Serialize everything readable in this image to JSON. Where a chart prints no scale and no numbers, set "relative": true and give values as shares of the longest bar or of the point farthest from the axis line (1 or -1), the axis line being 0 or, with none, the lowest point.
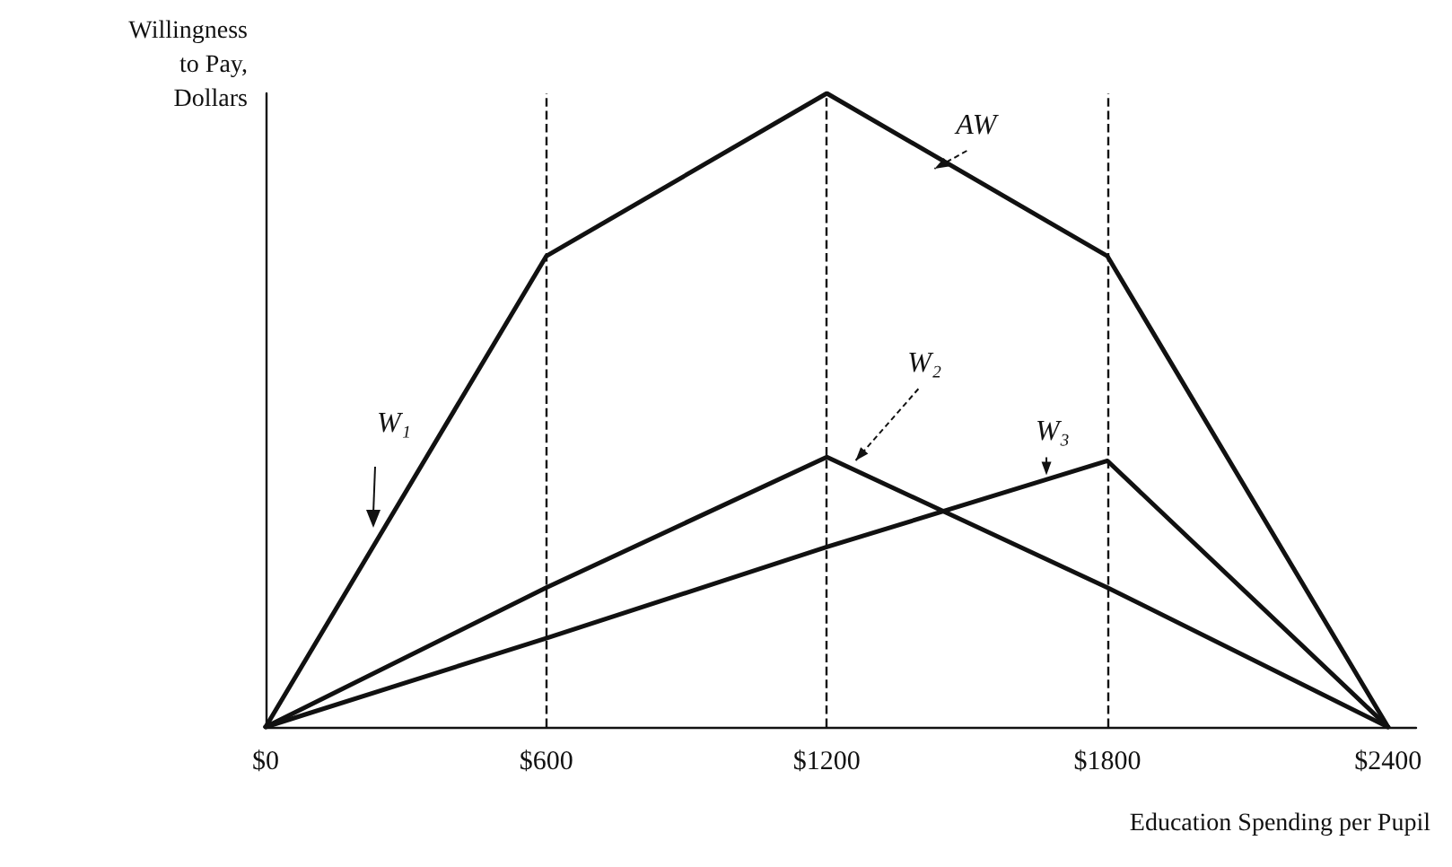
{
  "chart_data": {
    "type": "line",
    "ylabel": "Willingness\nto Pay,\nDollars",
    "xlabel": "Education Spending per Pupil",
    "relative": true,
    "xlim": [
      0,
      2460
    ],
    "xticks": [
      {
        "value": 0,
        "label": "$0"
      },
      {
        "value": 600,
        "label": "$600"
      },
      {
        "value": 1200,
        "label": "$1200"
      },
      {
        "value": 1800,
        "label": "$1800"
      },
      {
        "value": 2400,
        "label": "$2400"
      }
    ],
    "x": [
      0,
      600,
      1200,
      1800,
      2400
    ],
    "series": [
      {
        "name": "AW",
        "color": "#111111",
        "values": [
          0,
          0.743,
          1,
          0.743,
          0
        ]
      },
      {
        "name": "W₂",
        "color": "#111111",
        "values": [
          0,
          0.22,
          0.426,
          0.22,
          0
        ]
      },
      {
        "name": "W₃",
        "color": "#111111",
        "values": [
          0,
          0.14,
          0.284,
          0.42,
          0
        ]
      }
    ],
    "annotations": [
      "W₁"
    ],
    "ref_lines": [
      {
        "axis": "x",
        "value": 600,
        "line_style": "dashed",
        "color": "#111111"
      },
      {
        "axis": "x",
        "value": 1200,
        "line_style": "dashed",
        "color": "#111111"
      },
      {
        "axis": "x",
        "value": 1800,
        "line_style": "dashed",
        "color": "#111111"
      }
    ],
    "marker": "none",
    "line_style": "solid",
    "legend": false,
    "grid": false
  }
}
